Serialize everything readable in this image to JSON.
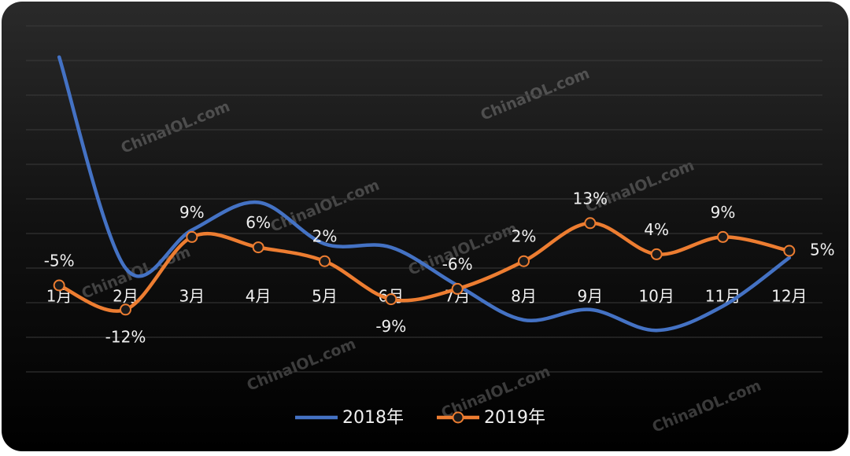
{
  "chart_data": {
    "type": "line",
    "categories": [
      "1月",
      "2月",
      "3月",
      "4月",
      "5月",
      "6月",
      "7月",
      "8月",
      "9月",
      "10月",
      "11月",
      "12月"
    ],
    "series": [
      {
        "name": "2018年",
        "color": "#4472c4",
        "values": [
          61,
          0,
          11,
          19,
          7,
          6,
          -5,
          -15,
          -12,
          -18,
          -11,
          3
        ]
      },
      {
        "name": "2019年",
        "color": "#ed7d31",
        "values": [
          -5,
          -12,
          9,
          6,
          2,
          -9,
          -6,
          2,
          13,
          4,
          9,
          5
        ],
        "value_labels": [
          "-5%",
          "-12%",
          "9%",
          "6%",
          "2%",
          "-9%",
          "-6%",
          "2%",
          "13%",
          "4%",
          "9%",
          "5%"
        ]
      }
    ],
    "ylim": [
      -30,
      70
    ],
    "yticks": [
      -30,
      -20,
      -10,
      0,
      10,
      20,
      30,
      40,
      50,
      60,
      70
    ],
    "grid": true,
    "legend": "bottom",
    "smooth": true,
    "watermark": "ChinaIOL.com"
  }
}
